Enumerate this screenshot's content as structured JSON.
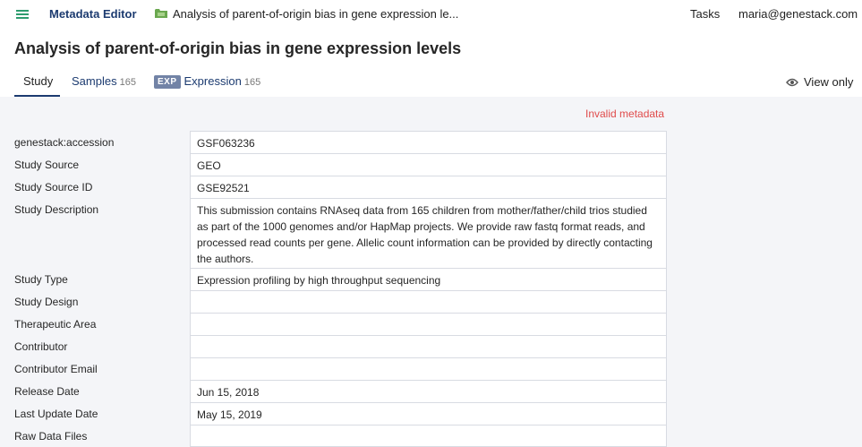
{
  "header": {
    "app_name": "Metadata Editor",
    "breadcrumb": "Analysis of parent-of-origin bias in gene expression le...",
    "tasks_label": "Tasks",
    "user_email": "maria@genestack.com"
  },
  "page": {
    "title": "Analysis of parent-of-origin bias in gene expression levels"
  },
  "tabs": [
    {
      "label": "Study",
      "count": "",
      "badge": ""
    },
    {
      "label": "Samples",
      "count": "165",
      "badge": ""
    },
    {
      "label": "Expression",
      "count": "165",
      "badge": "EXP"
    }
  ],
  "view_mode": {
    "label": "View only",
    "icon": "eye-icon"
  },
  "status": {
    "invalid_label": "Invalid metadata",
    "color": "#e04b4b"
  },
  "fields": [
    {
      "label": "genestack:accession",
      "value": "GSF063236"
    },
    {
      "label": "Study Source",
      "value": "GEO"
    },
    {
      "label": "Study Source ID",
      "value": "GSE92521"
    },
    {
      "label": "Study Description",
      "value": "This submission contains RNAseq data from 165 children from mother/father/child trios studied as part of the 1000 genomes and/or HapMap projects. We provide raw fastq format reads, and processed read counts per gene. Allelic count information can be provided by directly contacting the authors."
    },
    {
      "label": "Study Type",
      "value": "Expression profiling by high throughput sequencing"
    },
    {
      "label": "Study Design",
      "value": ""
    },
    {
      "label": "Therapeutic Area",
      "value": ""
    },
    {
      "label": "Contributor",
      "value": ""
    },
    {
      "label": "Contributor Email",
      "value": ""
    },
    {
      "label": "Release Date",
      "value": "Jun 15, 2018"
    },
    {
      "label": "Last Update Date",
      "value": "May 15, 2019"
    },
    {
      "label": "Raw Data Files",
      "value": ""
    }
  ],
  "colors": {
    "brand": "#1c3b70",
    "accent": "#2d9c6e",
    "badge": "#7283a6"
  }
}
